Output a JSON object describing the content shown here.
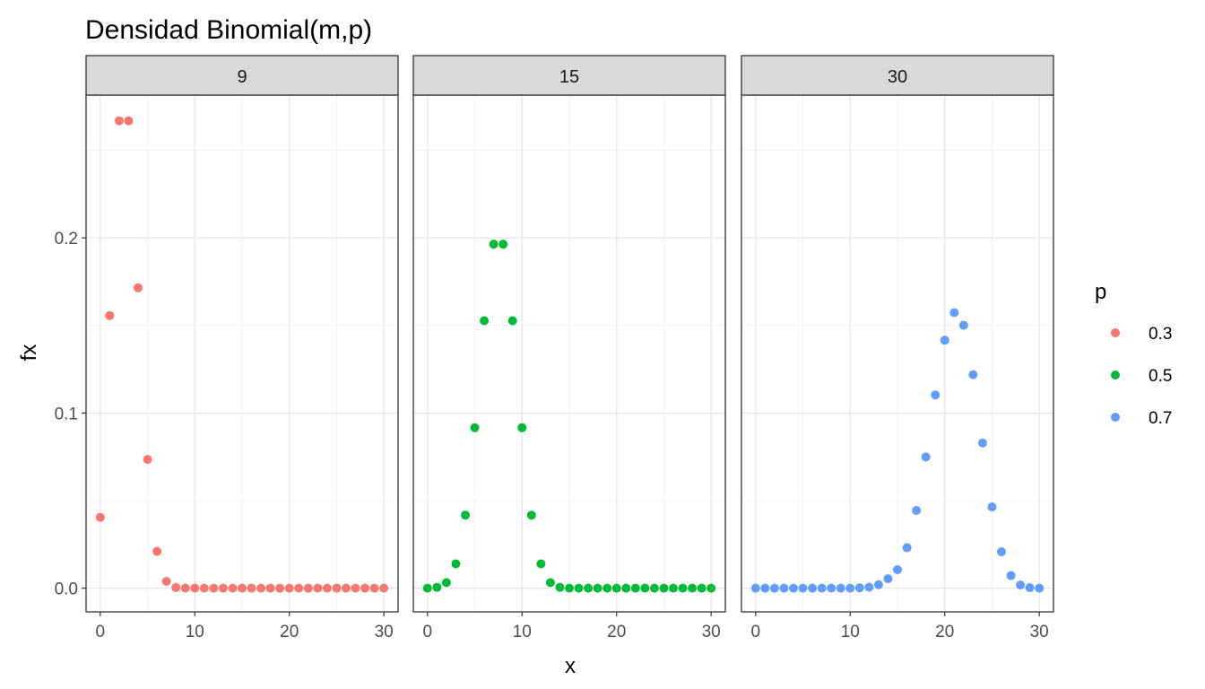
{
  "chart_data": {
    "type": "scatter",
    "title": "Densidad Binomial(m,p)",
    "xlabel": "x",
    "ylabel": "fx",
    "xlim": [
      -1.5,
      31.5
    ],
    "ylim": [
      -0.0135,
      0.2815
    ],
    "x_ticks": [
      0,
      10,
      20,
      30
    ],
    "x_tick_labels": [
      "0",
      "10",
      "20",
      "30"
    ],
    "y_ticks": [
      0.0,
      0.1,
      0.2
    ],
    "y_tick_labels": [
      "0.0",
      "0.1",
      "0.2"
    ],
    "grid": true,
    "legend": {
      "title": "p",
      "position": "right",
      "entries": [
        {
          "label": "0.3",
          "color": "#F8766D"
        },
        {
          "label": "0.5",
          "color": "#00BA38"
        },
        {
          "label": "0.7",
          "color": "#619CFF"
        }
      ]
    },
    "x": [
      0,
      1,
      2,
      3,
      4,
      5,
      6,
      7,
      8,
      9,
      10,
      11,
      12,
      13,
      14,
      15,
      16,
      17,
      18,
      19,
      20,
      21,
      22,
      23,
      24,
      25,
      26,
      27,
      28,
      29,
      30
    ],
    "panels": [
      {
        "strip": "9",
        "series_label": "0.3",
        "color": "#F8766D",
        "values": [
          0.0404,
          0.1556,
          0.2668,
          0.2668,
          0.1715,
          0.0735,
          0.021,
          0.0039,
          0.0004,
          0.0,
          0,
          0,
          0,
          0,
          0,
          0,
          0,
          0,
          0,
          0,
          0,
          0,
          0,
          0,
          0,
          0,
          0,
          0,
          0,
          0,
          0
        ]
      },
      {
        "strip": "15",
        "series_label": "0.5",
        "color": "#00BA38",
        "values": [
          0.0,
          0.0005,
          0.0032,
          0.0139,
          0.0417,
          0.0916,
          0.1527,
          0.1964,
          0.1964,
          0.1527,
          0.0916,
          0.0417,
          0.0139,
          0.0032,
          0.0005,
          0.0,
          0,
          0,
          0,
          0,
          0,
          0,
          0,
          0,
          0,
          0,
          0,
          0,
          0,
          0,
          0
        ]
      },
      {
        "strip": "30",
        "series_label": "0.7",
        "color": "#619CFF",
        "values": [
          0,
          0,
          0,
          0,
          0,
          0,
          0,
          0,
          0,
          0,
          0,
          0.0002,
          0.0006,
          0.002,
          0.0054,
          0.0106,
          0.0231,
          0.0444,
          0.0749,
          0.1103,
          0.1416,
          0.1573,
          0.1501,
          0.1219,
          0.0829,
          0.0464,
          0.0208,
          0.0072,
          0.0018,
          0.0003,
          0.0
        ]
      }
    ]
  }
}
